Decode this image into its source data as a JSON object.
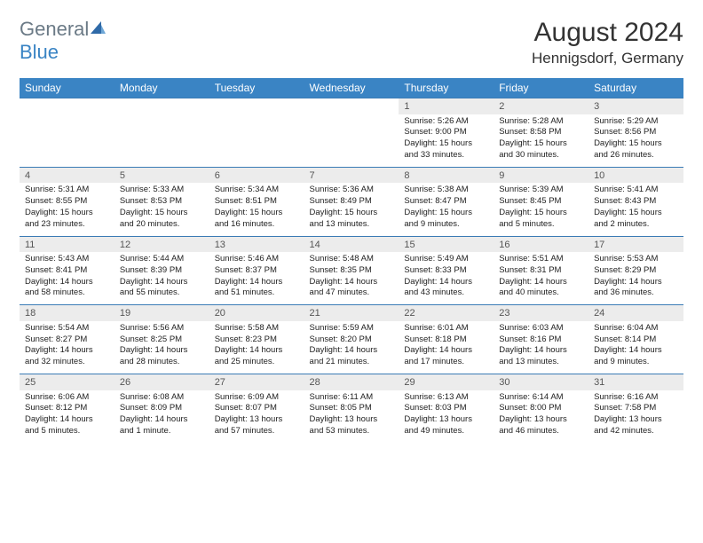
{
  "logo": {
    "general": "General",
    "blue": "Blue"
  },
  "title": "August 2024",
  "location": "Hennigsdorf, Germany",
  "colors": {
    "header_bg": "#3a84c4",
    "header_text": "#ffffff",
    "daynum_bg": "#ececec",
    "border": "#3a7bb5",
    "logo_gray": "#6b7a86",
    "logo_blue": "#3a84c4"
  },
  "weekdays": [
    "Sunday",
    "Monday",
    "Tuesday",
    "Wednesday",
    "Thursday",
    "Friday",
    "Saturday"
  ],
  "weeks": [
    [
      null,
      null,
      null,
      null,
      {
        "n": "1",
        "sr": "5:26 AM",
        "ss": "9:00 PM",
        "dl": "15 hours and 33 minutes."
      },
      {
        "n": "2",
        "sr": "5:28 AM",
        "ss": "8:58 PM",
        "dl": "15 hours and 30 minutes."
      },
      {
        "n": "3",
        "sr": "5:29 AM",
        "ss": "8:56 PM",
        "dl": "15 hours and 26 minutes."
      }
    ],
    [
      {
        "n": "4",
        "sr": "5:31 AM",
        "ss": "8:55 PM",
        "dl": "15 hours and 23 minutes."
      },
      {
        "n": "5",
        "sr": "5:33 AM",
        "ss": "8:53 PM",
        "dl": "15 hours and 20 minutes."
      },
      {
        "n": "6",
        "sr": "5:34 AM",
        "ss": "8:51 PM",
        "dl": "15 hours and 16 minutes."
      },
      {
        "n": "7",
        "sr": "5:36 AM",
        "ss": "8:49 PM",
        "dl": "15 hours and 13 minutes."
      },
      {
        "n": "8",
        "sr": "5:38 AM",
        "ss": "8:47 PM",
        "dl": "15 hours and 9 minutes."
      },
      {
        "n": "9",
        "sr": "5:39 AM",
        "ss": "8:45 PM",
        "dl": "15 hours and 5 minutes."
      },
      {
        "n": "10",
        "sr": "5:41 AM",
        "ss": "8:43 PM",
        "dl": "15 hours and 2 minutes."
      }
    ],
    [
      {
        "n": "11",
        "sr": "5:43 AM",
        "ss": "8:41 PM",
        "dl": "14 hours and 58 minutes."
      },
      {
        "n": "12",
        "sr": "5:44 AM",
        "ss": "8:39 PM",
        "dl": "14 hours and 55 minutes."
      },
      {
        "n": "13",
        "sr": "5:46 AM",
        "ss": "8:37 PM",
        "dl": "14 hours and 51 minutes."
      },
      {
        "n": "14",
        "sr": "5:48 AM",
        "ss": "8:35 PM",
        "dl": "14 hours and 47 minutes."
      },
      {
        "n": "15",
        "sr": "5:49 AM",
        "ss": "8:33 PM",
        "dl": "14 hours and 43 minutes."
      },
      {
        "n": "16",
        "sr": "5:51 AM",
        "ss": "8:31 PM",
        "dl": "14 hours and 40 minutes."
      },
      {
        "n": "17",
        "sr": "5:53 AM",
        "ss": "8:29 PM",
        "dl": "14 hours and 36 minutes."
      }
    ],
    [
      {
        "n": "18",
        "sr": "5:54 AM",
        "ss": "8:27 PM",
        "dl": "14 hours and 32 minutes."
      },
      {
        "n": "19",
        "sr": "5:56 AM",
        "ss": "8:25 PM",
        "dl": "14 hours and 28 minutes."
      },
      {
        "n": "20",
        "sr": "5:58 AM",
        "ss": "8:23 PM",
        "dl": "14 hours and 25 minutes."
      },
      {
        "n": "21",
        "sr": "5:59 AM",
        "ss": "8:20 PM",
        "dl": "14 hours and 21 minutes."
      },
      {
        "n": "22",
        "sr": "6:01 AM",
        "ss": "8:18 PM",
        "dl": "14 hours and 17 minutes."
      },
      {
        "n": "23",
        "sr": "6:03 AM",
        "ss": "8:16 PM",
        "dl": "14 hours and 13 minutes."
      },
      {
        "n": "24",
        "sr": "6:04 AM",
        "ss": "8:14 PM",
        "dl": "14 hours and 9 minutes."
      }
    ],
    [
      {
        "n": "25",
        "sr": "6:06 AM",
        "ss": "8:12 PM",
        "dl": "14 hours and 5 minutes."
      },
      {
        "n": "26",
        "sr": "6:08 AM",
        "ss": "8:09 PM",
        "dl": "14 hours and 1 minute."
      },
      {
        "n": "27",
        "sr": "6:09 AM",
        "ss": "8:07 PM",
        "dl": "13 hours and 57 minutes."
      },
      {
        "n": "28",
        "sr": "6:11 AM",
        "ss": "8:05 PM",
        "dl": "13 hours and 53 minutes."
      },
      {
        "n": "29",
        "sr": "6:13 AM",
        "ss": "8:03 PM",
        "dl": "13 hours and 49 minutes."
      },
      {
        "n": "30",
        "sr": "6:14 AM",
        "ss": "8:00 PM",
        "dl": "13 hours and 46 minutes."
      },
      {
        "n": "31",
        "sr": "6:16 AM",
        "ss": "7:58 PM",
        "dl": "13 hours and 42 minutes."
      }
    ]
  ],
  "labels": {
    "sunrise": "Sunrise:",
    "sunset": "Sunset:",
    "daylight": "Daylight:"
  }
}
